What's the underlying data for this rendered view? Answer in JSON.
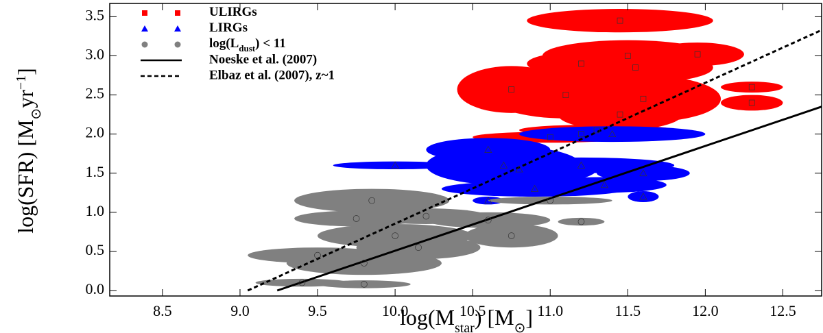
{
  "chart_data": {
    "type": "scatter",
    "xlabel_parts": [
      "log(M",
      "star",
      ")  [M",
      "⊙",
      "]"
    ],
    "ylabel_parts": [
      "log(SFR) [M",
      "⊙",
      "yr",
      "−1",
      "]"
    ],
    "xlim": [
      8.16,
      12.75
    ],
    "ylim": [
      -0.07,
      3.67
    ],
    "xticks": [
      8.5,
      {
        "value": 9,
        "label": "9.0"
      },
      9.5,
      {
        "value": 10,
        "label": "10.0"
      },
      10.5,
      {
        "value": 11,
        "label": "11.0"
      },
      11.5,
      {
        "value": 12,
        "label": "12.0"
      },
      12.5
    ],
    "yticks": [
      {
        "value": 0,
        "label": "0.0"
      },
      0.5,
      {
        "value": 1,
        "label": "1.0"
      },
      1.5,
      {
        "value": 2,
        "label": "2.0"
      },
      2.5,
      {
        "value": 3,
        "label": "3.0"
      },
      3.5
    ],
    "series": [
      {
        "name": "ULIRGs",
        "color": "#ff0000",
        "marker": "square",
        "x": [
          11.45,
          11.5,
          11.55,
          11.95,
          11.2,
          10.75,
          11.1,
          11.6,
          11.45,
          12.3,
          12.3,
          11.2,
          11.3,
          11.0
        ],
        "values": [
          3.45,
          3.0,
          2.85,
          3.02,
          2.9,
          2.57,
          2.5,
          2.45,
          2.25,
          2.6,
          2.4,
          2.0,
          2.05,
          1.96
        ],
        "xerr": [
          0.6,
          0.55,
          0.5,
          0.3,
          0.35,
          0.35,
          0.5,
          0.5,
          0.4,
          0.2,
          0.2,
          0.3,
          0.5,
          0.5
        ],
        "yerr": [
          0.15,
          0.2,
          0.2,
          0.15,
          0.15,
          0.3,
          0.3,
          0.3,
          0.2,
          0.07,
          0.1,
          0.1,
          0.07,
          0.07
        ]
      },
      {
        "name": "LIRGs",
        "color": "#0000ff",
        "marker": "triangle",
        "x": [
          10.0,
          10.6,
          10.7,
          11.2,
          11.4,
          10.9,
          10.8,
          11.6,
          10.6,
          11.6,
          11.35
        ],
        "values": [
          1.6,
          1.8,
          1.6,
          1.6,
          2.0,
          1.3,
          1.55,
          1.2,
          1.15,
          1.5,
          1.35
        ],
        "xerr": [
          0.4,
          0.4,
          0.5,
          0.6,
          0.6,
          0.6,
          0.5,
          0.1,
          0.1,
          0.3,
          0.4
        ],
        "yerr": [
          0.05,
          0.15,
          0.25,
          0.1,
          0.1,
          0.1,
          0.2,
          0.07,
          0.05,
          0.1,
          0.1
        ]
      },
      {
        "name": "log(L",
        "name_sub": "dust",
        "name_tail": ") < 11",
        "color": "#808080",
        "marker": "circle",
        "x": [
          9.85,
          9.75,
          10.2,
          10.0,
          10.6,
          10.75,
          9.5,
          9.8,
          10.15,
          9.8,
          9.4,
          11.0,
          11.2
        ],
        "values": [
          1.15,
          0.92,
          0.95,
          0.7,
          0.9,
          0.7,
          0.45,
          0.35,
          0.55,
          0.08,
          0.1,
          1.15,
          0.88
        ],
        "xerr": [
          0.5,
          0.4,
          0.4,
          0.5,
          0.4,
          0.3,
          0.45,
          0.5,
          0.4,
          0.3,
          0.3,
          0.4,
          0.15
        ],
        "yerr": [
          0.15,
          0.1,
          0.1,
          0.15,
          0.1,
          0.15,
          0.1,
          0.15,
          0.15,
          0.05,
          0.05,
          0.05,
          0.05
        ]
      }
    ],
    "lines": [
      {
        "name": "Noeske et al. (2007)",
        "style": "solid",
        "x": [
          9.24,
          12.75
        ],
        "values": [
          0.0,
          2.35
        ]
      },
      {
        "name": "Elbaz et al. (2007), z~1",
        "style": "dashed",
        "x": [
          9.05,
          12.75
        ],
        "values": [
          0.0,
          3.33
        ]
      }
    ]
  }
}
